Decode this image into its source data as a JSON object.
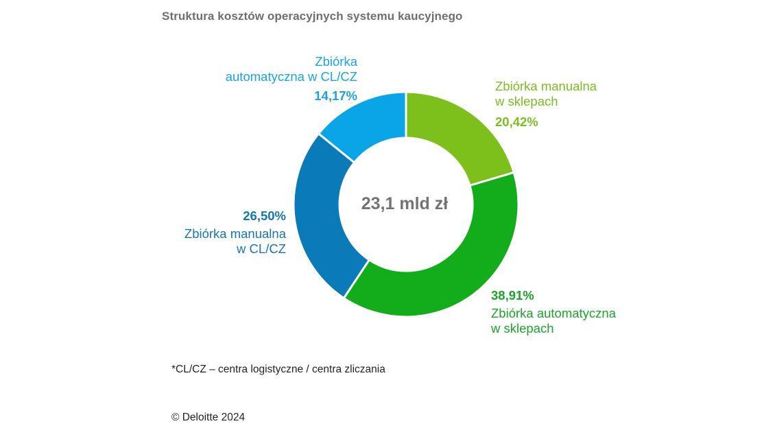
{
  "chart_data": {
    "type": "pie",
    "title": "Struktura kosztów operacyjnych systemu kaucyjnego",
    "center_label": "23,1 mld zł",
    "slices": [
      {
        "label_line1": "Zbiórka manualna",
        "label_line2": "w sklepach",
        "value": 20.42,
        "value_text": "20,42%",
        "color": "#7dc01c"
      },
      {
        "label_line1": "Zbiórka automatyczna",
        "label_line2": "w sklepach",
        "value": 38.91,
        "value_text": "38,91%",
        "color": "#13ad1b"
      },
      {
        "label_line1": "Zbiórka manualna",
        "label_line2": "w CL/CZ",
        "value": 26.5,
        "value_text": "26,50%",
        "color": "#0b7ab8"
      },
      {
        "label_line1": "Zbiórka",
        "label_line2": "automatyczna w CL/CZ",
        "value": 14.17,
        "value_text": "14,17%",
        "color": "#0aa5e6"
      }
    ],
    "label_colors": [
      "#7bbd22",
      "#1aa52a",
      "#1577b0",
      "#1aa3e0"
    ]
  },
  "footnote": "*CL/CZ – centra logistyczne / centra zliczania",
  "copyright": "© Deloitte 2024"
}
